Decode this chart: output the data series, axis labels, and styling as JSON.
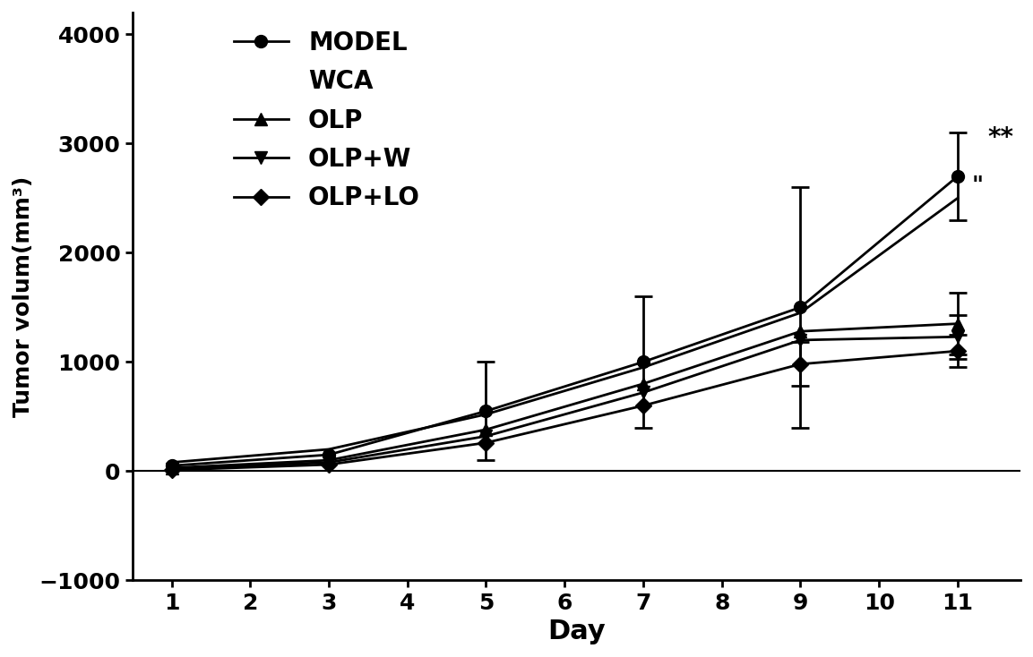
{
  "series": [
    {
      "label": "MODEL",
      "marker": "o",
      "markersize": 10,
      "x": [
        1,
        3,
        5,
        7,
        9,
        11
      ],
      "y": [
        50,
        150,
        550,
        1000,
        1500,
        2700
      ],
      "yerr_lo": [
        0,
        0,
        450,
        600,
        1100,
        400
      ],
      "yerr_hi": [
        0,
        0,
        450,
        600,
        1100,
        400
      ],
      "show_err_at": [
        false,
        false,
        true,
        true,
        true,
        true
      ]
    },
    {
      "label": "WCA",
      "marker": "",
      "markersize": 0,
      "x": [
        1,
        3,
        5,
        7,
        9,
        11
      ],
      "y": [
        80,
        200,
        520,
        950,
        1450,
        2500
      ],
      "yerr_lo": [
        0,
        0,
        0,
        0,
        0,
        0
      ],
      "yerr_hi": [
        0,
        0,
        0,
        0,
        0,
        0
      ],
      "show_err_at": [
        false,
        false,
        false,
        false,
        false,
        false
      ]
    },
    {
      "label": "OLP",
      "marker": "^",
      "markersize": 10,
      "x": [
        1,
        3,
        5,
        7,
        9,
        11
      ],
      "y": [
        30,
        100,
        380,
        800,
        1280,
        1350
      ],
      "yerr_lo": [
        0,
        0,
        0,
        0,
        0,
        280
      ],
      "yerr_hi": [
        0,
        0,
        0,
        0,
        0,
        280
      ],
      "show_err_at": [
        false,
        false,
        false,
        false,
        false,
        true
      ]
    },
    {
      "label": "OLP+W",
      "marker": "v",
      "markersize": 10,
      "x": [
        1,
        3,
        5,
        7,
        9,
        11
      ],
      "y": [
        20,
        80,
        320,
        720,
        1200,
        1230
      ],
      "yerr_lo": [
        0,
        0,
        0,
        0,
        0,
        200
      ],
      "yerr_hi": [
        0,
        0,
        0,
        0,
        0,
        200
      ],
      "show_err_at": [
        false,
        false,
        false,
        false,
        false,
        true
      ]
    },
    {
      "label": "OLP+LO",
      "marker": "D",
      "markersize": 9,
      "x": [
        1,
        3,
        5,
        7,
        9,
        11
      ],
      "y": [
        10,
        60,
        260,
        600,
        980,
        1100
      ],
      "yerr_lo": [
        0,
        0,
        0,
        0,
        200,
        150
      ],
      "yerr_hi": [
        0,
        0,
        0,
        0,
        200,
        150
      ],
      "show_err_at": [
        false,
        false,
        false,
        false,
        true,
        true
      ]
    }
  ],
  "xlabel": "Day",
  "ylabel": "Tumor volum(mm³)",
  "xlim": [
    0.5,
    11.8
  ],
  "ylim": [
    -1000,
    4200
  ],
  "yticks": [
    -1000,
    0,
    1000,
    2000,
    3000,
    4000
  ],
  "xticks": [
    1,
    2,
    3,
    4,
    5,
    6,
    7,
    8,
    9,
    10,
    11
  ],
  "line_color": "#000000",
  "background_color": "#ffffff",
  "ann1_text": "**",
  "ann1_x": 11.55,
  "ann1_y": 3050,
  "ann2_text": "\"",
  "ann2_x": 11.25,
  "ann2_y": 2620
}
